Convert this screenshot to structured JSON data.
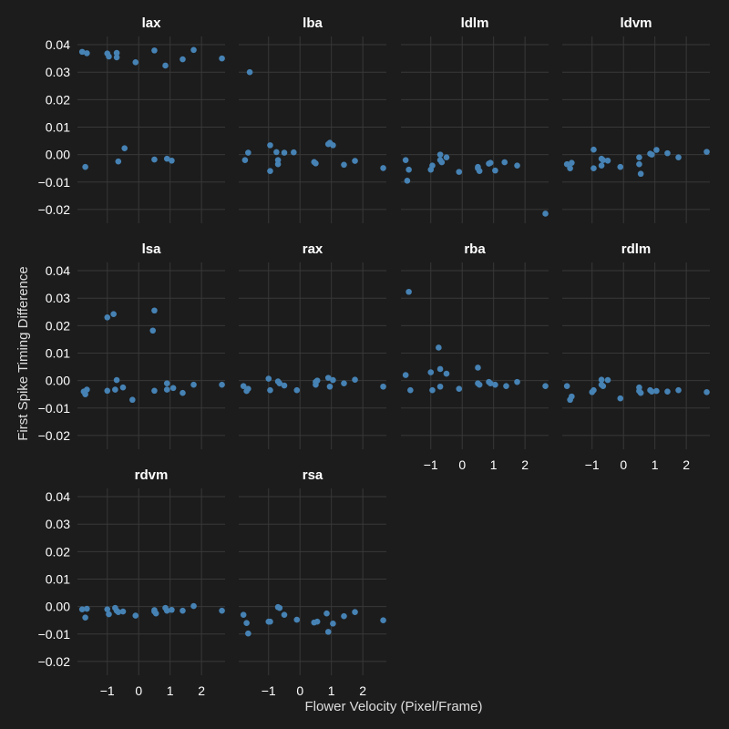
{
  "chart_data": {
    "type": "scatter",
    "xlabel": "Flower Velocity (Pixel/Frame)",
    "ylabel": "First Spike Timing Difference",
    "xlim": [
      -1.95,
      2.75
    ],
    "ylim": [
      -0.025,
      0.043
    ],
    "x_ticks": [
      -1,
      0,
      1,
      2
    ],
    "x_tick_labels": [
      "−1",
      "0",
      "1",
      "2"
    ],
    "y_ticks": [
      -0.02,
      -0.01,
      0.0,
      0.01,
      0.02,
      0.03,
      0.04
    ],
    "y_tick_labels": [
      "−0.02",
      "−0.01",
      "0.00",
      "0.01",
      "0.02",
      "0.03",
      "0.04"
    ],
    "grid": true,
    "point_color": "#4682b4",
    "background": "#1c1c1c",
    "panels": [
      {
        "name": "lax",
        "x": [
          -1.8,
          -1.65,
          -1.7,
          -1.0,
          -0.95,
          -0.7,
          -0.7,
          -0.65,
          -0.45,
          -0.1,
          0.5,
          0.5,
          0.85,
          0.9,
          1.05,
          1.4,
          1.75,
          2.65
        ],
        "y": [
          0.0374,
          0.0369,
          -0.0045,
          0.0368,
          0.0357,
          0.037,
          0.0354,
          -0.0025,
          0.0023,
          0.0336,
          0.0379,
          -0.0018,
          0.0324,
          -0.0015,
          -0.0022,
          0.0347,
          0.0381,
          0.035
        ]
      },
      {
        "name": "lba",
        "x": [
          -1.75,
          -1.6,
          -1.65,
          -0.95,
          -0.95,
          -0.75,
          -0.7,
          -0.7,
          -0.5,
          -0.2,
          0.45,
          0.5,
          0.9,
          0.95,
          1.05,
          1.4,
          1.75,
          2.65
        ],
        "y": [
          -0.002,
          0.03,
          0.0007,
          0.0034,
          -0.006,
          0.0009,
          -0.002,
          -0.0035,
          0.0007,
          0.0008,
          -0.0027,
          -0.0032,
          0.0038,
          0.0043,
          0.0034,
          -0.0037,
          -0.0023,
          -0.0049
        ]
      },
      {
        "name": "ldlm",
        "x": [
          -1.8,
          -1.7,
          -1.75,
          -1.0,
          -0.95,
          -0.7,
          -0.7,
          -0.65,
          -0.5,
          -0.1,
          0.5,
          0.5,
          0.55,
          0.85,
          0.9,
          1.05,
          1.35,
          1.75,
          2.65
        ],
        "y": [
          -0.002,
          -0.0055,
          -0.0095,
          -0.0055,
          -0.004,
          0.0,
          -0.002,
          -0.0028,
          -0.001,
          -0.0063,
          -0.0045,
          -0.005,
          -0.006,
          -0.0033,
          -0.003,
          -0.0058,
          -0.0028,
          -0.004,
          -0.0215
        ]
      },
      {
        "name": "ldvm",
        "x": [
          -1.8,
          -1.7,
          -1.65,
          -0.95,
          -0.95,
          -0.7,
          -0.7,
          -0.65,
          -0.5,
          -0.1,
          0.5,
          0.5,
          0.55,
          0.85,
          0.9,
          1.05,
          1.4,
          1.75,
          2.65
        ],
        "y": [
          -0.0035,
          -0.005,
          -0.003,
          0.0018,
          -0.005,
          -0.0015,
          -0.004,
          -0.002,
          -0.0022,
          -0.0045,
          -0.001,
          -0.0035,
          -0.007,
          0.0003,
          0.0,
          0.0017,
          0.0005,
          -0.001,
          0.001
        ]
      },
      {
        "name": "lsa",
        "x": [
          -1.75,
          -1.7,
          -1.65,
          -1.0,
          -1.0,
          -0.8,
          -0.75,
          -0.7,
          -0.5,
          -0.2,
          0.45,
          0.5,
          0.5,
          0.9,
          0.9,
          1.1,
          1.4,
          1.75,
          2.65
        ],
        "y": [
          -0.004,
          -0.005,
          -0.0033,
          0.023,
          -0.0037,
          0.0242,
          -0.0033,
          0.0002,
          -0.0025,
          -0.007,
          0.0182,
          0.0255,
          -0.0037,
          -0.001,
          -0.0033,
          -0.0027,
          -0.0045,
          -0.0015,
          -0.0015
        ]
      },
      {
        "name": "rax",
        "x": [
          -1.8,
          -1.7,
          -1.65,
          -1.0,
          -0.95,
          -0.7,
          -0.65,
          -0.5,
          -0.1,
          0.5,
          0.5,
          0.55,
          0.9,
          0.95,
          1.05,
          1.4,
          1.75,
          2.65
        ],
        "y": [
          -0.002,
          -0.0038,
          -0.003,
          0.0007,
          -0.0035,
          -0.0003,
          -0.001,
          -0.0018,
          -0.0035,
          -0.0005,
          -0.0015,
          0.0,
          0.001,
          -0.0022,
          0.0002,
          -0.001,
          0.0003,
          -0.0022
        ]
      },
      {
        "name": "rba",
        "x": [
          -1.8,
          -1.7,
          -1.65,
          -1.0,
          -0.95,
          -0.75,
          -0.7,
          -0.7,
          -0.5,
          -0.1,
          0.5,
          0.5,
          0.55,
          0.85,
          0.9,
          1.05,
          1.4,
          1.75,
          2.65
        ],
        "y": [
          0.002,
          0.0323,
          -0.0035,
          0.003,
          -0.0035,
          0.012,
          0.0042,
          -0.0022,
          0.0025,
          -0.003,
          0.0047,
          -0.001,
          -0.0015,
          -0.0005,
          -0.001,
          -0.0015,
          -0.002,
          -0.0005,
          -0.002
        ]
      },
      {
        "name": "rdlm",
        "x": [
          -1.8,
          -1.7,
          -1.65,
          -1.0,
          -0.95,
          -0.7,
          -0.7,
          -0.65,
          -0.5,
          -0.1,
          0.5,
          0.5,
          0.55,
          0.85,
          0.9,
          1.05,
          1.4,
          1.75,
          2.65
        ],
        "y": [
          -0.002,
          -0.007,
          -0.0058,
          -0.0042,
          -0.0035,
          0.0003,
          -0.0015,
          -0.002,
          0.0002,
          -0.0065,
          -0.0025,
          -0.0038,
          -0.0045,
          -0.0035,
          -0.004,
          -0.0038,
          -0.004,
          -0.0035,
          -0.0042
        ]
      },
      {
        "name": "rdvm",
        "x": [
          -1.8,
          -1.7,
          -1.65,
          -1.0,
          -0.95,
          -0.75,
          -0.7,
          -0.65,
          -0.5,
          -0.1,
          0.5,
          0.5,
          0.55,
          0.85,
          0.9,
          1.05,
          1.4,
          1.75,
          2.65
        ],
        "y": [
          -0.001,
          -0.004,
          -0.0008,
          -0.001,
          -0.0028,
          -0.0005,
          -0.0015,
          -0.002,
          -0.0018,
          -0.0033,
          -0.0013,
          -0.0018,
          -0.0025,
          -0.0005,
          -0.0015,
          -0.0012,
          -0.0015,
          0.0002,
          -0.0015
        ]
      },
      {
        "name": "rsa",
        "x": [
          -1.8,
          -1.7,
          -1.65,
          -1.0,
          -0.95,
          -0.7,
          -0.65,
          -0.5,
          -0.1,
          0.45,
          0.55,
          0.85,
          0.9,
          1.05,
          1.4,
          1.75,
          2.65
        ],
        "y": [
          -0.003,
          -0.006,
          -0.0098,
          -0.0055,
          -0.0055,
          -0.0002,
          -0.0005,
          -0.003,
          -0.0048,
          -0.0058,
          -0.0055,
          -0.0025,
          -0.0092,
          -0.0062,
          -0.0035,
          -0.002,
          -0.005
        ]
      }
    ]
  }
}
